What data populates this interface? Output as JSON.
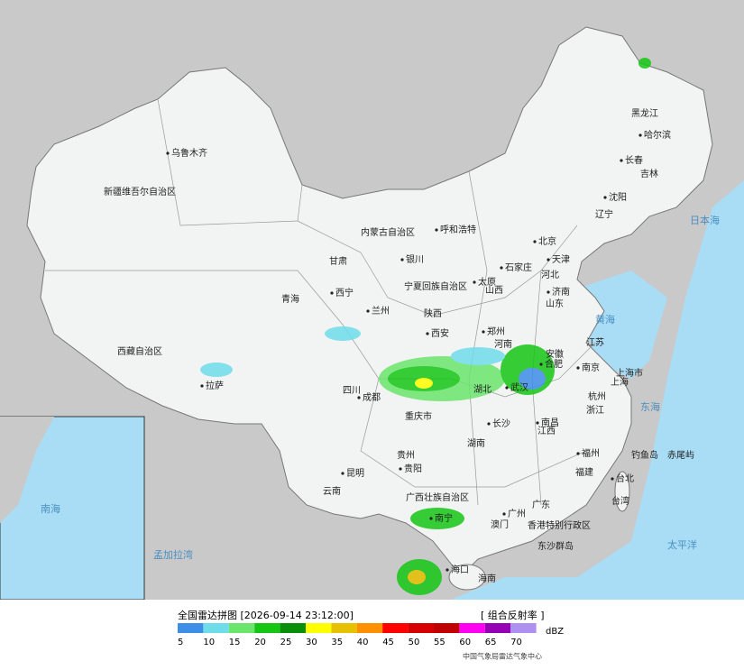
{
  "map": {
    "labels": [
      "乌鲁木齐",
      "新疆维吾尔自治区",
      "西藏自治区",
      "拉萨",
      "青海",
      "西宁",
      "甘肃",
      "内蒙古自治区",
      "呼和浩特",
      "银川",
      "宁夏回族自治区",
      "兰州",
      "陕西",
      "西安",
      "山西",
      "太原",
      "石家庄",
      "北京",
      "天津",
      "河北",
      "辽宁",
      "沈阳",
      "吉林",
      "长春",
      "黑龙江",
      "哈尔滨",
      "山东",
      "济南",
      "河南",
      "郑州",
      "江苏",
      "南京",
      "上海市",
      "上海",
      "安徽",
      "合肥",
      "湖北",
      "武汉",
      "四川",
      "成都",
      "重庆市",
      "浙江",
      "杭州",
      "湖南",
      "长沙",
      "江西",
      "南昌",
      "福建",
      "福州",
      "贵州",
      "贵阳",
      "云南",
      "昆明",
      "广西壮族自治区",
      "南宁",
      "广东",
      "广州",
      "澳门",
      "香港特别行政区",
      "海口",
      "海南",
      "台北",
      "台湾",
      "东沙群岛",
      "钓鱼岛",
      "赤尾屿"
    ],
    "seas": [
      "日本海",
      "黄海",
      "东海",
      "太平洋",
      "孟加拉湾",
      "南海"
    ]
  },
  "legend": {
    "title": "全国雷达拼图 [2026-09-14 23:12:00]",
    "product": "[ 组合反射率 ]",
    "unit": "dBZ",
    "ticks": [
      {
        "value": 5,
        "color": "#3e8ee8"
      },
      {
        "value": 10,
        "color": "#6fdcea"
      },
      {
        "value": 15,
        "color": "#6ce56c"
      },
      {
        "value": 20,
        "color": "#15c615"
      },
      {
        "value": 25,
        "color": "#0a8f0a"
      },
      {
        "value": 30,
        "color": "#ffff00"
      },
      {
        "value": 35,
        "color": "#e7c000"
      },
      {
        "value": 40,
        "color": "#ff9000"
      },
      {
        "value": 45,
        "color": "#ff0000"
      },
      {
        "value": 50,
        "color": "#d60000"
      },
      {
        "value": 55,
        "color": "#c00000"
      },
      {
        "value": 60,
        "color": "#ff00f0"
      },
      {
        "value": 65,
        "color": "#9600b4"
      },
      {
        "value": 70,
        "color": "#ad90f0"
      }
    ],
    "credit": "中国气象局雷达气象中心"
  }
}
